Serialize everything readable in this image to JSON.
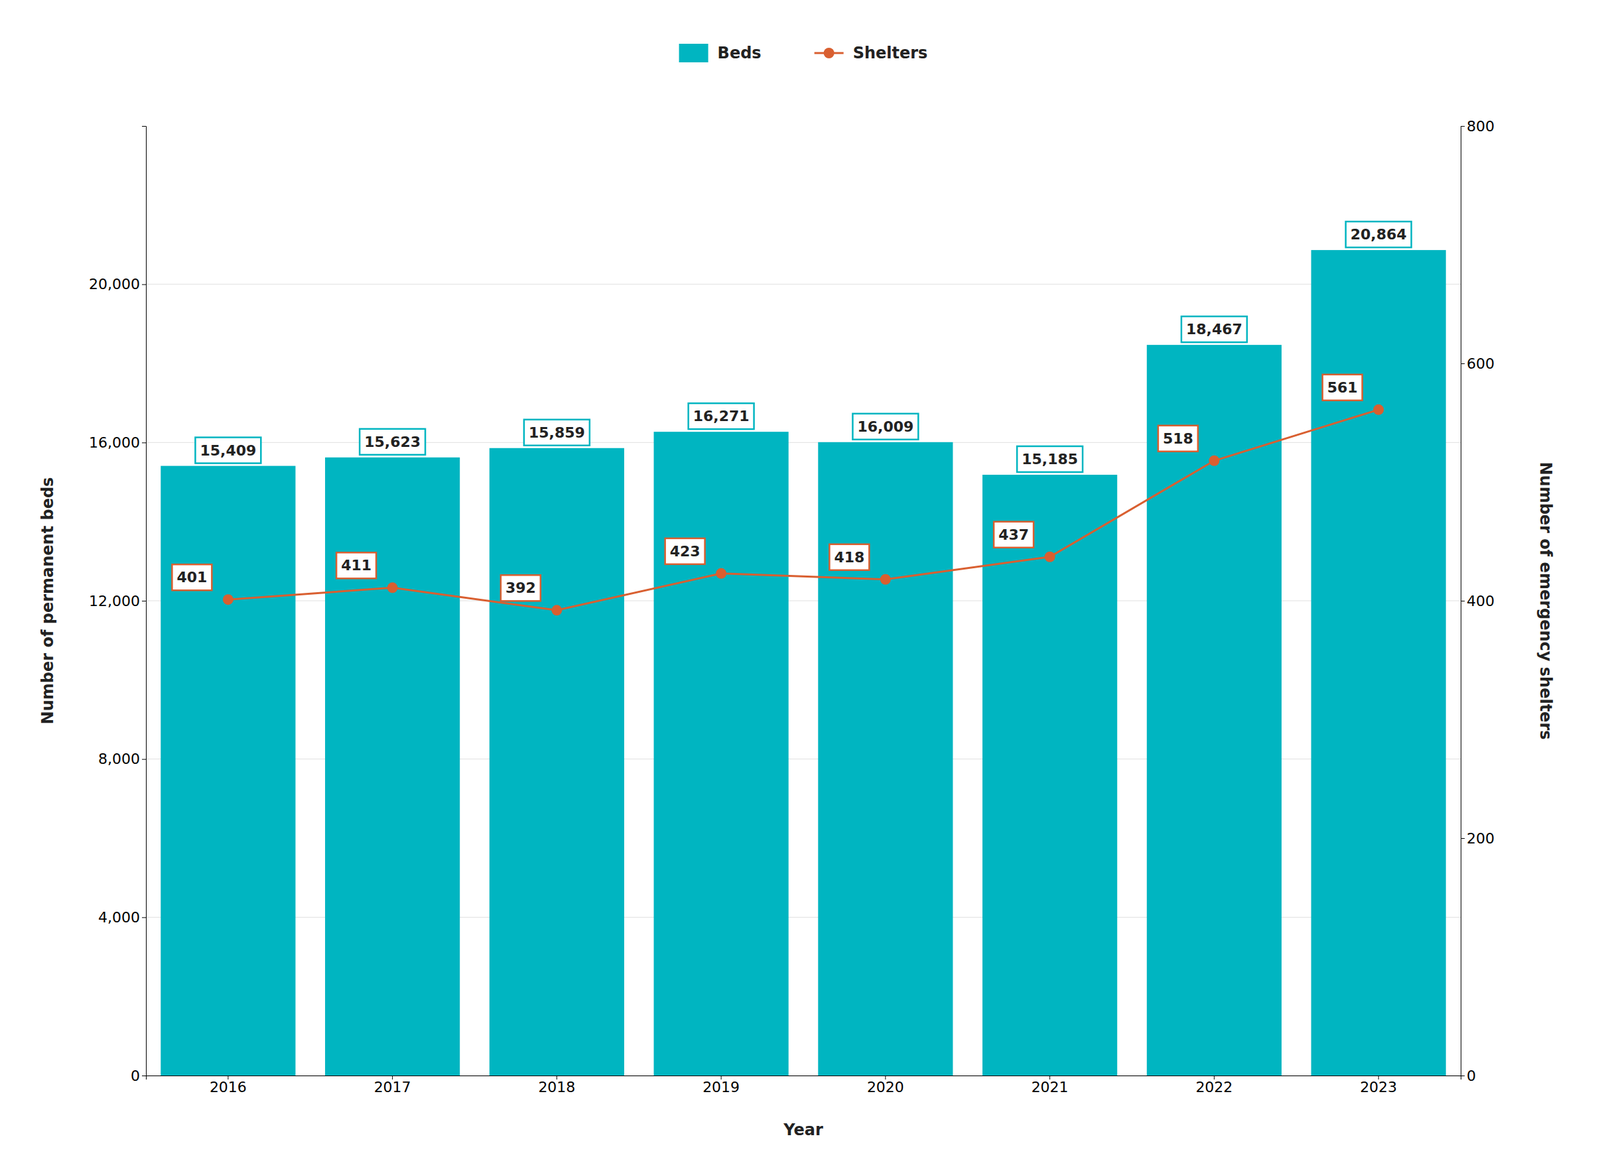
{
  "chart_data": {
    "type": "bar",
    "xlabel": "Year",
    "ylabel": "Number of permanent beds",
    "y2label": "Number of emergency shelters",
    "categories": [
      "2016",
      "2017",
      "2018",
      "2019",
      "2020",
      "2021",
      "2022",
      "2023"
    ],
    "series": [
      {
        "name": "Beds",
        "type": "bar",
        "color": "#00B5C1",
        "values": [
          15409,
          15623,
          15859,
          16271,
          16009,
          15185,
          18467,
          20864
        ],
        "value_labels": [
          "15,409",
          "15,623",
          "15,859",
          "16,271",
          "16,009",
          "15,185",
          "18,467",
          "20,864"
        ]
      },
      {
        "name": "Shelters",
        "type": "line",
        "color": "#D95F30",
        "marker": "circle",
        "axis": "y2",
        "values": [
          401,
          411,
          392,
          423,
          418,
          437,
          518,
          561
        ]
      }
    ],
    "ylim": [
      0,
      24000
    ],
    "yticks": [
      0,
      {
        "value": 4000,
        "label": "4,000"
      },
      {
        "value": 8000,
        "label": "8,000"
      },
      {
        "value": 12000,
        "label": "12,000"
      },
      {
        "value": 16000,
        "label": "16,000"
      },
      {
        "value": 20000,
        "label": "20,000"
      }
    ],
    "y2lim": [
      0,
      800
    ],
    "y2ticks": [
      0,
      200,
      400,
      600,
      800
    ],
    "grid": true,
    "legend": "top",
    "data_labels": true
  }
}
